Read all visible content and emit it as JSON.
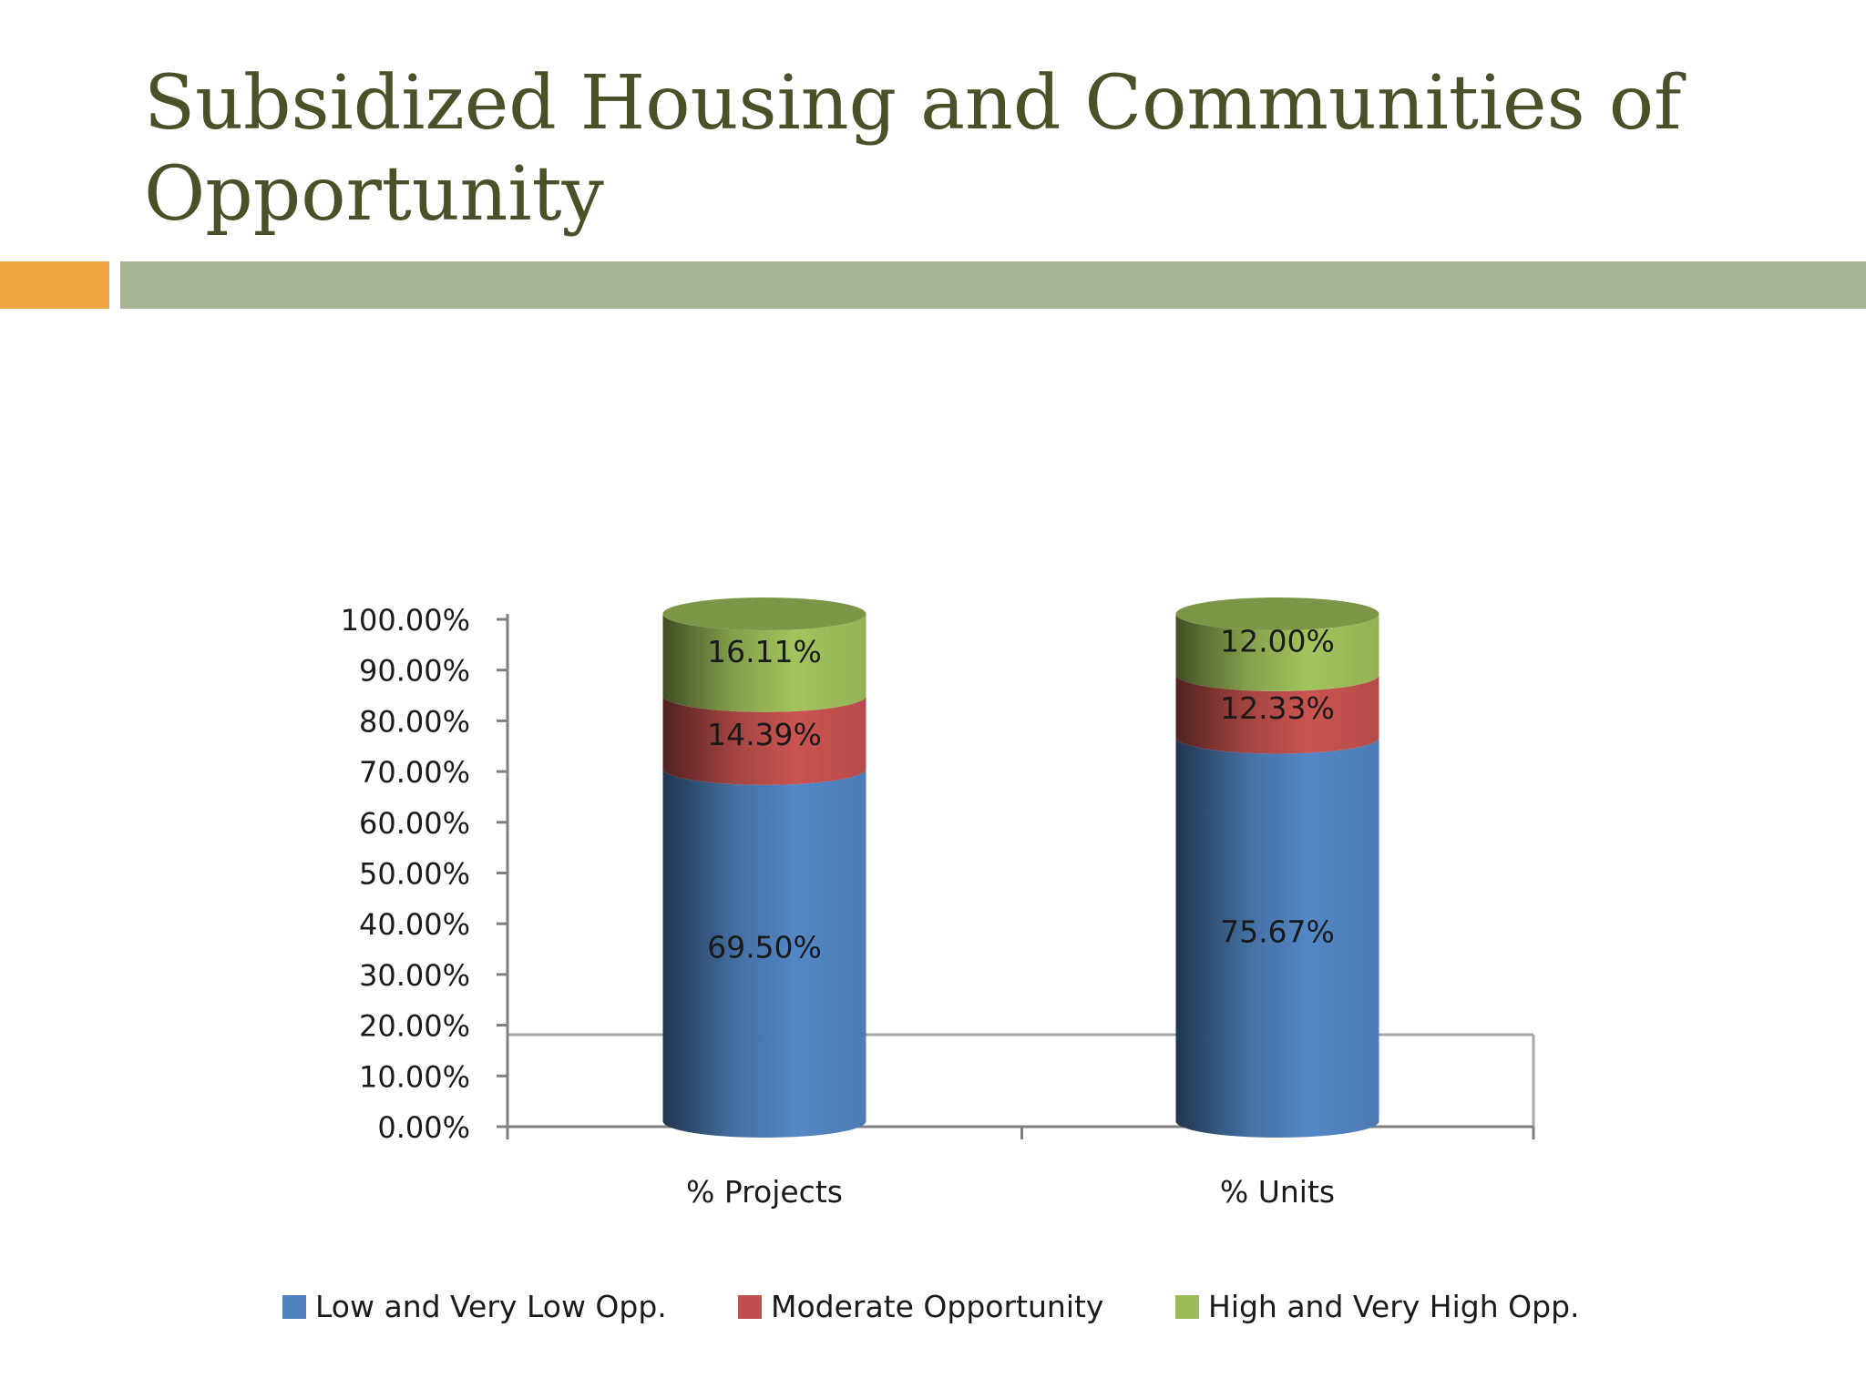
{
  "slide": {
    "title_line1": "Subsidized Housing and Communities of",
    "title_line2": "Opportunity",
    "accent_left_color": "#F0A542",
    "accent_bar_color": "#A8B595",
    "title_color": "#4A5128"
  },
  "chart_data": {
    "type": "bar",
    "stacked": true,
    "style": "3d-cylinder",
    "title": "",
    "xlabel": "",
    "ylabel": "",
    "categories": [
      "% Projects",
      "% Units"
    ],
    "series": [
      {
        "name": "Low and Very Low Opp.",
        "color": "#4F81BD",
        "values": [
          69.5,
          75.67
        ],
        "labels": [
          "69.50%",
          "75.67%"
        ]
      },
      {
        "name": "Moderate Opportunity",
        "color": "#C0504D",
        "values": [
          14.39,
          12.33
        ],
        "labels": [
          "14.39%",
          "12.33%"
        ]
      },
      {
        "name": "High and Very High Opp.",
        "color": "#9BBB59",
        "values": [
          16.11,
          12.0
        ],
        "labels": [
          "16.11%",
          "12.00%"
        ]
      }
    ],
    "ylim": [
      0,
      100
    ],
    "yticks": [
      0,
      10,
      20,
      30,
      40,
      50,
      60,
      70,
      80,
      90,
      100
    ],
    "ytick_labels": [
      "0.00%",
      "10.00%",
      "20.00%",
      "30.00%",
      "40.00%",
      "50.00%",
      "60.00%",
      "70.00%",
      "80.00%",
      "90.00%",
      "100.00%"
    ],
    "grid": false,
    "legend_position": "bottom"
  }
}
